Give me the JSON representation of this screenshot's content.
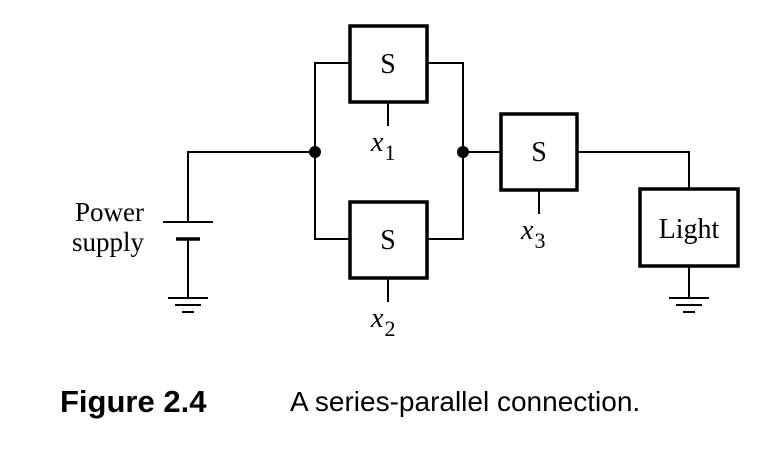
{
  "diagram": {
    "power_label_line1": "Power",
    "power_label_line2": "supply",
    "switch_label": "S",
    "light_label": "Light",
    "x1": {
      "base": "x",
      "sub": "1"
    },
    "x2": {
      "base": "x",
      "sub": "2"
    },
    "x3": {
      "base": "x",
      "sub": "3"
    }
  },
  "caption": {
    "figure_label": "Figure 2.4",
    "text": "A series-parallel connection."
  },
  "colors": {
    "ink": "#000000",
    "background": "#ffffff"
  }
}
